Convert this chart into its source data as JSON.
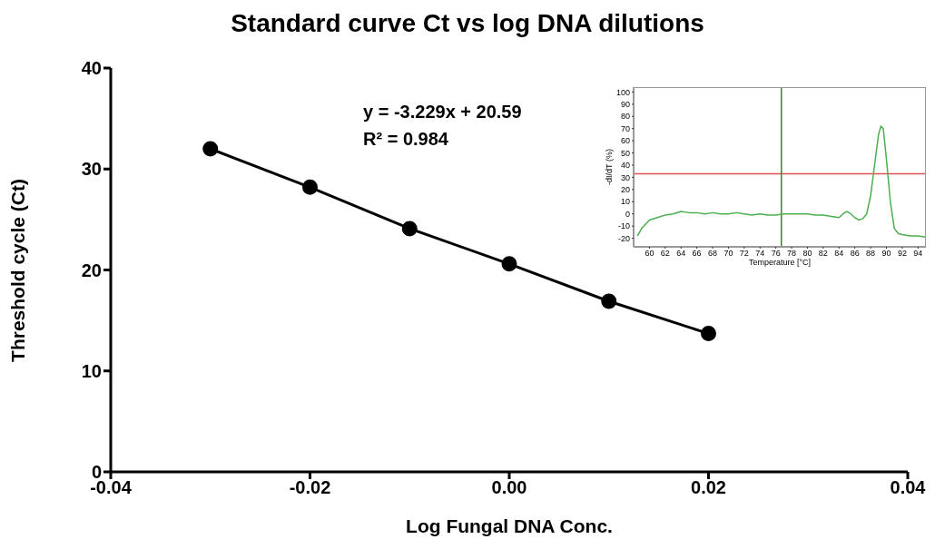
{
  "chart_data": [
    {
      "type": "line",
      "title": "Standard curve Ct vs log DNA dilutions",
      "xlabel": "Log Fungal DNA Conc.",
      "ylabel": "Threshold cycle (Ct)",
      "x": [
        -0.03,
        -0.02,
        -0.01,
        0,
        0.01,
        0.02
      ],
      "series": [
        {
          "color": "#000000",
          "values": [
            32.0,
            28.2,
            24.1,
            20.6,
            16.9,
            13.7
          ]
        }
      ],
      "xlim": [
        -0.04,
        0.04
      ],
      "xticks": [
        -0.04,
        -0.02,
        {
          "value": 0,
          "label": "0.00"
        },
        0.02,
        0.04
      ],
      "ylim": [
        0,
        40
      ],
      "yticks": [
        0,
        10,
        20,
        30,
        40
      ],
      "marker": "circle",
      "grid": false,
      "annotations": [
        "y = -3.229x + 20.59",
        "R² = 0.984"
      ]
    },
    {
      "type": "line",
      "xlabel": "Temperature [°C]",
      "ylabel": "-dI/dT (%)",
      "x": [
        58.5,
        59,
        60,
        61,
        62,
        63,
        64,
        65,
        66,
        67,
        68,
        69,
        70,
        71,
        72,
        73,
        74,
        75,
        76,
        77,
        78,
        79,
        80,
        81,
        82,
        83,
        84,
        84.5,
        85,
        85.5,
        86,
        86.5,
        87,
        87.5,
        88,
        88.5,
        89,
        89.3,
        89.6,
        90,
        90.5,
        91,
        91.5,
        92,
        93,
        94,
        95
      ],
      "series": [
        {
          "color": "#4caf50",
          "values": [
            -18,
            -12,
            -5,
            -3,
            -1,
            0,
            2,
            1,
            1,
            0,
            1,
            0,
            0,
            1,
            0,
            -1,
            0,
            -1,
            -1,
            0,
            0,
            0,
            0,
            -1,
            -1,
            -2,
            -3,
            0,
            2,
            0,
            -3,
            -5,
            -4,
            0,
            15,
            40,
            65,
            72,
            70,
            45,
            10,
            -12,
            -16,
            -17,
            -18,
            -18,
            -19
          ]
        }
      ],
      "xlim": [
        58,
        95
      ],
      "xticks": [
        60,
        62,
        64,
        66,
        68,
        70,
        72,
        74,
        76,
        78,
        80,
        82,
        84,
        86,
        88,
        90,
        92,
        94
      ],
      "ylim": [
        -27,
        104
      ],
      "yticks": [
        -20,
        -10,
        0,
        10,
        20,
        30,
        40,
        50,
        60,
        70,
        80,
        90,
        100
      ],
      "marker": "none",
      "grid": false,
      "ref_lines": [
        {
          "axis": "y",
          "value": 33,
          "color": "#e05050"
        },
        {
          "axis": "x",
          "value": 76.7,
          "color": "#2e8b2e"
        }
      ]
    }
  ]
}
